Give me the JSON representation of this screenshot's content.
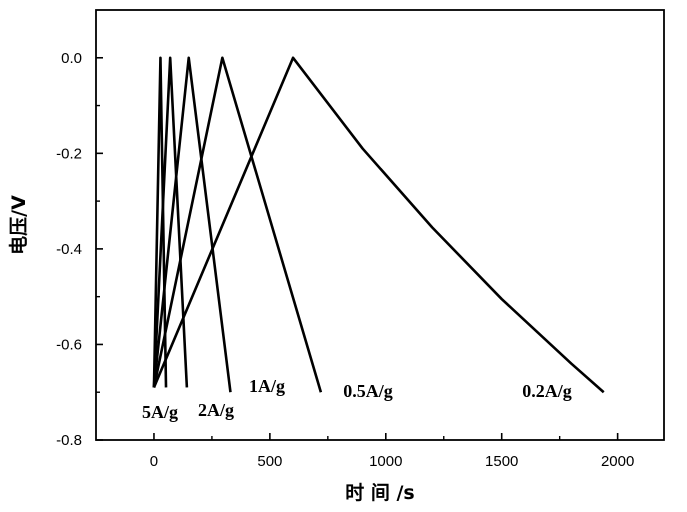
{
  "chart_data": {
    "type": "line",
    "title": "",
    "xlabel": "时 间 /s",
    "ylabel": "电压/V",
    "xlim": [
      -250,
      2200
    ],
    "ylim": [
      -0.8,
      0.1
    ],
    "xticks": [
      0,
      500,
      1000,
      1500,
      2000
    ],
    "yticks": [
      0.0,
      -0.2,
      -0.4,
      -0.6,
      -0.8
    ],
    "xtick_labels": [
      "0",
      "500",
      "1000",
      "1500",
      "2000"
    ],
    "ytick_labels": [
      "0.0",
      "-0.2",
      "-0.4",
      "-0.6",
      "-0.8"
    ],
    "grid": false,
    "series": [
      {
        "name": "5A/g",
        "x": [
          0,
          28,
          52
        ],
        "y": [
          -0.69,
          0.0,
          -0.69
        ]
      },
      {
        "name": "2A/g",
        "x": [
          0,
          70,
          142
        ],
        "y": [
          -0.69,
          0.0,
          -0.69
        ]
      },
      {
        "name": "1A/g",
        "x": [
          0,
          150,
          330
        ],
        "y": [
          -0.69,
          0.0,
          -0.7
        ]
      },
      {
        "name": "0.5A/g",
        "x": [
          0,
          295,
          720
        ],
        "y": [
          -0.69,
          0.0,
          -0.7
        ]
      },
      {
        "name": "0.2A/g",
        "x": [
          0,
          600,
          900,
          1200,
          1500,
          1800,
          1940
        ],
        "y": [
          -0.69,
          0.0,
          -0.19,
          -0.355,
          -0.505,
          -0.64,
          -0.7
        ]
      }
    ]
  }
}
